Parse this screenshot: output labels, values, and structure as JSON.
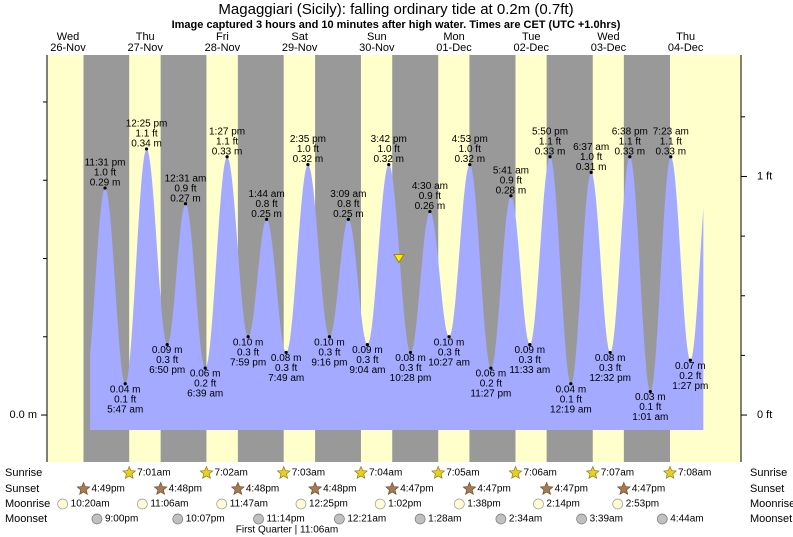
{
  "header": {
    "title": "Magaggiari (Sicily): falling  ordinary tide at 0.2m (0.7ft)",
    "subtitle": "Image captured 3 hours and 10 minutes after high water. Times are CET (UTC +1.0hrs)"
  },
  "chart_data": {
    "type": "tide",
    "ylim": [
      -0.06,
      0.46
    ],
    "yticks": [
      {
        "value": 0,
        "label": "0.0 m"
      }
    ],
    "yminorticks": [
      0.1,
      0.2,
      0.3,
      0.4
    ],
    "y2lim": [
      -0.19685,
      1.50919
    ],
    "y2ticks": [
      {
        "value": 0,
        "label": "0 ft"
      },
      {
        "value": 1,
        "label": "1 ft"
      }
    ],
    "y2minorticks": [
      0.25,
      0.5,
      0.75,
      1.25
    ],
    "tide_color": "#a3aaff",
    "day_color": "#ffffcc",
    "night_color": "#999999",
    "day_label_color": "#e00000",
    "row_labels": [
      "Sunrise",
      "Sunset",
      "Moonrise",
      "Moonset"
    ],
    "moon_phase": "First Quarter | 11:06am",
    "days": [
      {
        "weekday": "Wed",
        "date": "26-Nov",
        "sunrise": null,
        "sunset": "4:49pm",
        "moonrise": "10:20am",
        "moonset": "9:00pm",
        "tides": [
          {
            "time": "11:31 pm",
            "ft": "1.0 ft",
            "m": 0.29,
            "m_label": "0.29 m"
          }
        ]
      },
      {
        "weekday": "Thu",
        "date": "27-Nov",
        "sunrise": "7:01am",
        "sunset": "4:48pm",
        "moonrise": "11:06am",
        "moonset": "10:07pm",
        "tides": [
          {
            "time": "5:47 am",
            "ft": "0.1 ft",
            "m": 0.04,
            "m_label": "0.04 m"
          },
          {
            "time": "12:25 pm",
            "ft": "1.1 ft",
            "m": 0.34,
            "m_label": "0.34 m"
          },
          {
            "time": "6:50 pm",
            "ft": "0.3 ft",
            "m": 0.09,
            "m_label": "0.09 m"
          }
        ]
      },
      {
        "weekday": "Fri",
        "date": "28-Nov",
        "sunrise": "7:02am",
        "sunset": "4:48pm",
        "moonrise": "11:47am",
        "moonset": "11:14pm",
        "tides": [
          {
            "time": "12:31 am",
            "ft": "0.9 ft",
            "m": 0.27,
            "m_label": "0.27 m"
          },
          {
            "time": "6:39 am",
            "ft": "0.2 ft",
            "m": 0.06,
            "m_label": "0.06 m"
          },
          {
            "time": "1:27 pm",
            "ft": "1.1 ft",
            "m": 0.33,
            "m_label": "0.33 m"
          },
          {
            "time": "7:59 pm",
            "ft": "0.3 ft",
            "m": 0.1,
            "m_label": "0.10 m"
          }
        ]
      },
      {
        "weekday": "Sat",
        "date": "29-Nov",
        "sunrise": "7:03am",
        "sunset": "4:48pm",
        "moonrise": "12:25pm",
        "moonset": null,
        "tides": [
          {
            "time": "1:44 am",
            "ft": "0.8 ft",
            "m": 0.25,
            "m_label": "0.25 m"
          },
          {
            "time": "7:49 am",
            "ft": "0.3 ft",
            "m": 0.08,
            "m_label": "0.08 m"
          },
          {
            "time": "2:35 pm",
            "ft": "1.0 ft",
            "m": 0.32,
            "m_label": "0.32 m"
          },
          {
            "time": "9:16 pm",
            "ft": "0.3 ft",
            "m": 0.1,
            "m_label": "0.10 m"
          }
        ]
      },
      {
        "weekday": "Sun",
        "date": "30-Nov",
        "sunrise": "7:04am",
        "sunset": "4:47pm",
        "moonrise": "1:02pm",
        "moonset": "12:21am",
        "now": {
          "time": "6:52 pm",
          "m": 0.2
        },
        "tides": [
          {
            "time": "3:09 am",
            "ft": "0.8 ft",
            "m": 0.25,
            "m_label": "0.25 m"
          },
          {
            "time": "9:04 am",
            "ft": "0.3 ft",
            "m": 0.09,
            "m_label": "0.09 m"
          },
          {
            "time": "3:42 pm",
            "ft": "1.0 ft",
            "m": 0.32,
            "m_label": "0.32 m"
          },
          {
            "time": "10:28 pm",
            "ft": "0.3 ft",
            "m": 0.08,
            "m_label": "0.08 m"
          }
        ]
      },
      {
        "weekday": "Mon",
        "date": "01-Dec",
        "sunrise": "7:05am",
        "sunset": "4:47pm",
        "moonrise": "1:38pm",
        "moonset": "1:28am",
        "tides": [
          {
            "time": "4:30 am",
            "ft": "0.9 ft",
            "m": 0.26,
            "m_label": "0.26 m"
          },
          {
            "time": "10:27 am",
            "ft": "0.3 ft",
            "m": 0.1,
            "m_label": "0.10 m"
          },
          {
            "time": "4:53 pm",
            "ft": "1.0 ft",
            "m": 0.32,
            "m_label": "0.32 m"
          },
          {
            "time": "11:27 pm",
            "ft": "0.2 ft",
            "m": 0.06,
            "m_label": "0.06 m"
          }
        ]
      },
      {
        "weekday": "Tue",
        "date": "02-Dec",
        "sunrise": "7:06am",
        "sunset": "4:47pm",
        "moonrise": "2:14pm",
        "moonset": "2:34am",
        "tides": [
          {
            "time": "5:41 am",
            "ft": "0.9 ft",
            "m": 0.28,
            "m_label": "0.28 m"
          },
          {
            "time": "11:33 am",
            "ft": "0.3 ft",
            "m": 0.09,
            "m_label": "0.09 m"
          },
          {
            "time": "5:50 pm",
            "ft": "1.1 ft",
            "m": 0.33,
            "m_label": "0.33 m"
          }
        ]
      },
      {
        "weekday": "Wed",
        "date": "03-Dec",
        "sunrise": "7:07am",
        "sunset": "4:47pm",
        "moonrise": "2:53pm",
        "moonset": "3:39am",
        "tides": [
          {
            "time": "12:19 am",
            "ft": "0.1 ft",
            "m": 0.04,
            "m_label": "0.04 m"
          },
          {
            "time": "6:37 am",
            "ft": "1.0 ft",
            "m": 0.31,
            "m_label": "0.31 m"
          },
          {
            "time": "12:32 pm",
            "ft": "0.3 ft",
            "m": 0.08,
            "m_label": "0.08 m"
          },
          {
            "time": "6:38 pm",
            "ft": "1.1 ft",
            "m": 0.33,
            "m_label": "0.33 m"
          }
        ]
      },
      {
        "weekday": "Thu",
        "date": "04-Dec",
        "sunrise": "7:08am",
        "sunset": null,
        "moonrise": null,
        "moonset": "4:44am",
        "tides": [
          {
            "time": "1:01 am",
            "ft": "0.1 ft",
            "m": 0.03,
            "m_label": "0.03 m"
          },
          {
            "time": "7:23 am",
            "ft": "1.1 ft",
            "m": 0.33,
            "m_label": "0.33 m"
          },
          {
            "time": "1:27 pm",
            "ft": "0.2 ft",
            "m": 0.07,
            "m_label": "0.07 m"
          }
        ]
      }
    ]
  }
}
